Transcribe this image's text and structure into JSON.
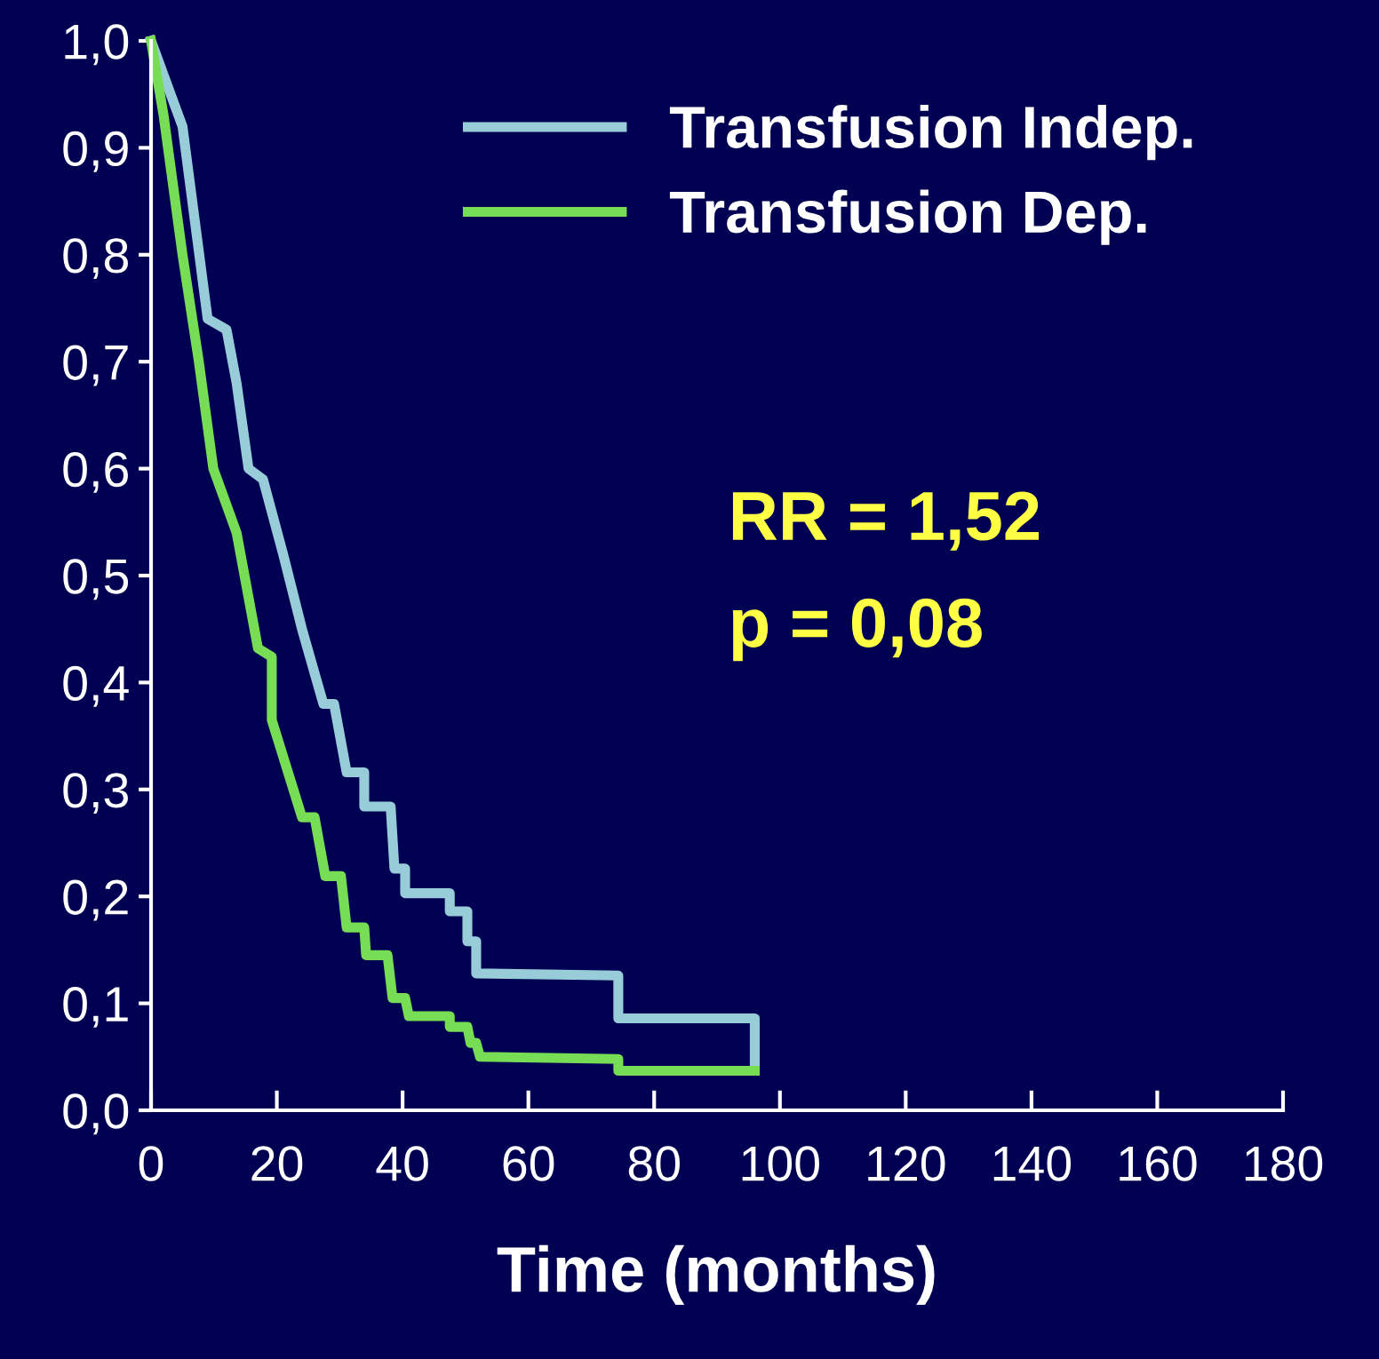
{
  "chart_data": {
    "type": "line",
    "xlabel": "Time (months)",
    "series": [
      {
        "name": "Transfusion Indep.",
        "color": "#99ccd9",
        "x": [
          0,
          5,
          9,
          12,
          13.6,
          15.5,
          17.8,
          21,
          24,
          27.4,
          29.1,
          31.1,
          33.9,
          33.9,
          38.1,
          38.7,
          40.4,
          40.4,
          47.5,
          47.5,
          50.3,
          50.3,
          51.7,
          51.7,
          74.3,
          74.3,
          96,
          96
        ],
        "values": [
          1.0,
          0.92,
          0.74,
          0.73,
          0.68,
          0.6,
          0.59,
          0.52,
          0.45,
          0.38,
          0.38,
          0.316,
          0.316,
          0.284,
          0.284,
          0.226,
          0.226,
          0.203,
          0.203,
          0.186,
          0.186,
          0.158,
          0.158,
          0.128,
          0.126,
          0.086,
          0.086,
          0.038
        ]
      },
      {
        "name": "Transfusion Dep.",
        "color": "#77dd55",
        "x": [
          0,
          2,
          5,
          7.6,
          9.9,
          13.6,
          17,
          19.2,
          19.2,
          24,
          26,
          27.7,
          30.2,
          31.1,
          33.9,
          34.2,
          37.6,
          38.4,
          40.4,
          41,
          47.5,
          47.5,
          50.3,
          50.8,
          51.7,
          52.3,
          74.3,
          74.3,
          96
        ],
        "values": [
          1.0,
          0.93,
          0.8,
          0.7,
          0.6,
          0.54,
          0.432,
          0.424,
          0.365,
          0.274,
          0.274,
          0.219,
          0.219,
          0.171,
          0.171,
          0.145,
          0.145,
          0.105,
          0.105,
          0.088,
          0.088,
          0.078,
          0.078,
          0.063,
          0.063,
          0.05,
          0.048,
          0.037,
          0.037
        ]
      }
    ],
    "xlim": [
      0,
      180
    ],
    "xticks": [
      0,
      20,
      40,
      60,
      80,
      100,
      120,
      140,
      160,
      180
    ],
    "ylim": [
      0,
      1
    ],
    "yticks": [
      {
        "value": 0,
        "label": "0,0"
      },
      {
        "value": 0.1,
        "label": "0,1"
      },
      {
        "value": 0.2,
        "label": "0,2"
      },
      {
        "value": 0.3,
        "label": "0,3"
      },
      {
        "value": 0.4,
        "label": "0,4"
      },
      {
        "value": 0.5,
        "label": "0,5"
      },
      {
        "value": 0.6,
        "label": "0,6"
      },
      {
        "value": 0.7,
        "label": "0,7"
      },
      {
        "value": 0.8,
        "label": "0,8"
      },
      {
        "value": 0.9,
        "label": "0,9"
      },
      {
        "value": 1,
        "label": "1,0"
      }
    ],
    "annotations": [
      "RR = 1,52",
      "p = 0,08"
    ],
    "legend": "top right",
    "grid": false,
    "marker": "none",
    "line_style": "solid"
  }
}
